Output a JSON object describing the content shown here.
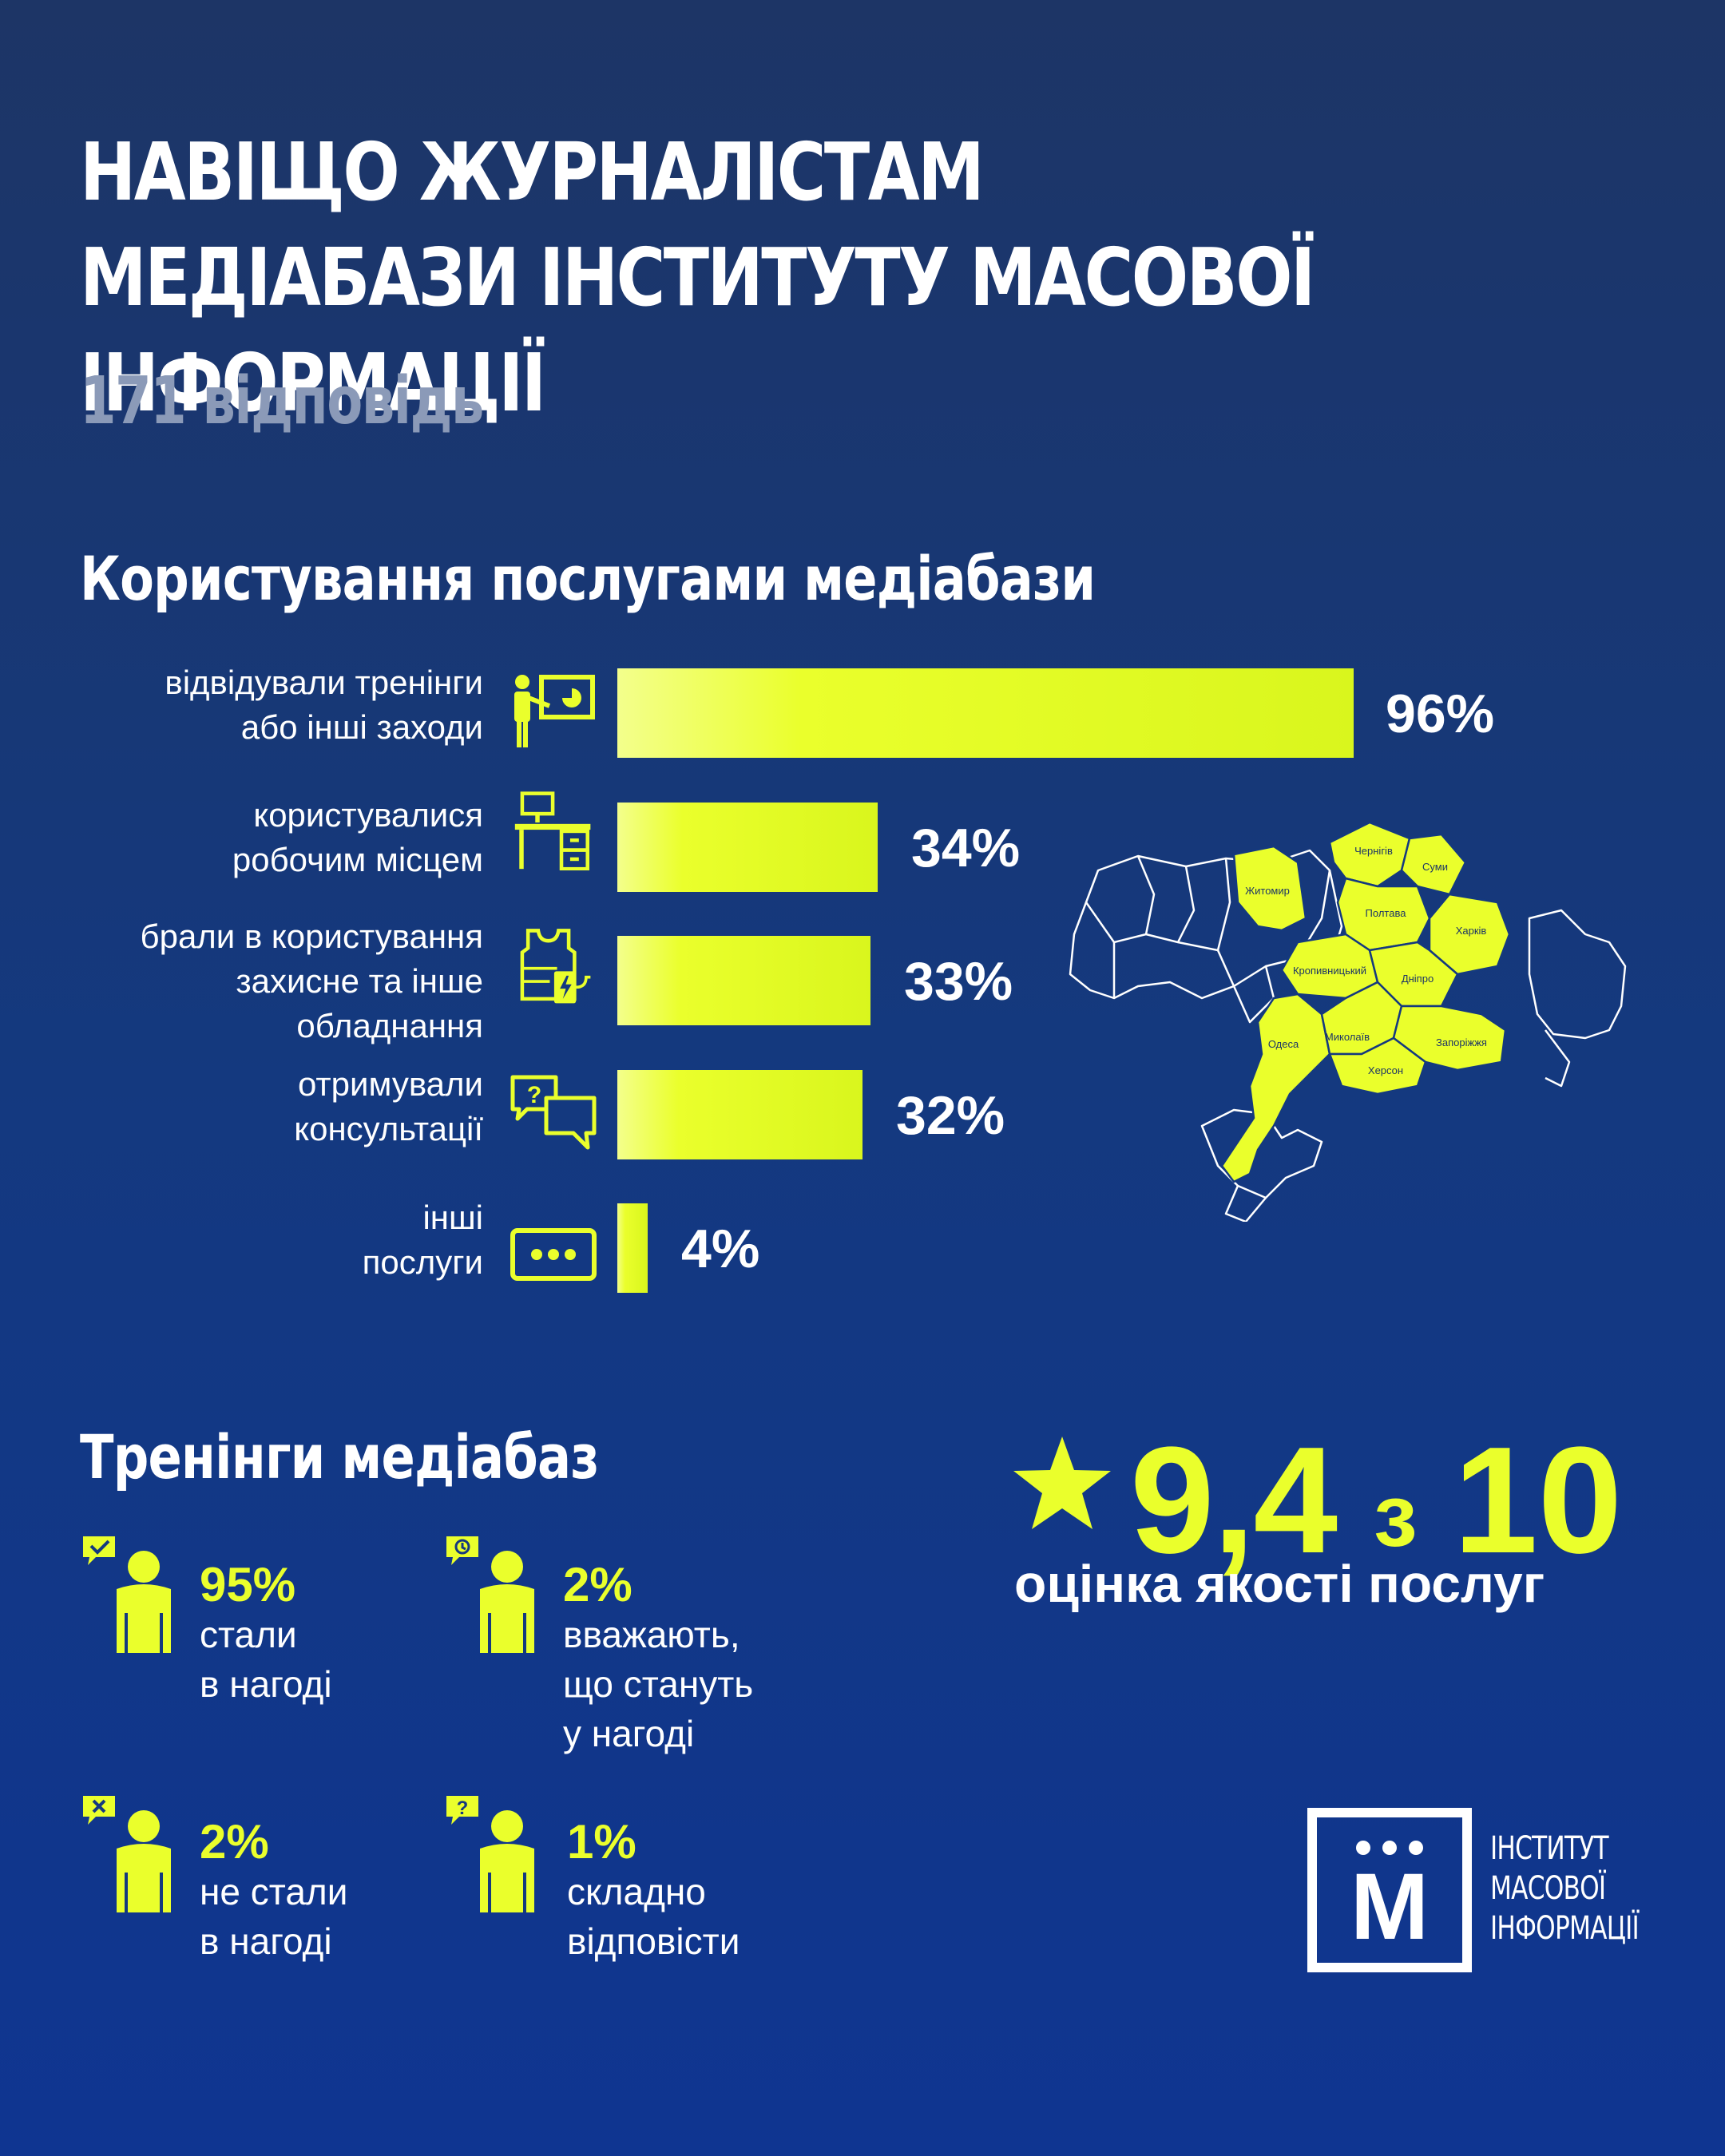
{
  "header": {
    "title": "НАВІЩО ЖУРНАЛІСТАМ МЕДІАБАЗИ ІНСТИТУТУ МАСОВОЇ ІНФОРМАЦІЇ",
    "subtitle": "171 відповідь"
  },
  "colors": {
    "accent": "#eaff2c",
    "background": "#14397f",
    "text": "#ffffff",
    "muted": "#8b9ab8"
  },
  "services": {
    "title": "Користування послугами медіабази"
  },
  "chart_data": {
    "type": "bar",
    "orientation": "horizontal",
    "categories": [
      "відвідували тренінги або інші заходи",
      "користувалися робочим місцем",
      "брали в користування захисне та інше обладнання",
      "отримували консультації",
      "інші послуги"
    ],
    "values": [
      96,
      34,
      33,
      32,
      4
    ],
    "value_labels": [
      "96%",
      "34%",
      "33%",
      "32%",
      "4%"
    ],
    "icons": [
      "trainer-presentation-icon",
      "workplace-desk-icon",
      "body-armor-power-icon",
      "consultation-chat-icon",
      "more-dots-icon"
    ],
    "label_lines": [
      [
        "відвідували тренінги",
        "або інші заходи"
      ],
      [
        "користувалися",
        "робочим місцем"
      ],
      [
        "брали в користування",
        "захисне та інше",
        "обладнання"
      ],
      [
        "отримували",
        "консультації"
      ],
      [
        "інші",
        "послуги"
      ]
    ],
    "title": "Користування послугами медіабази",
    "unit": "%",
    "xlim": [
      0,
      100
    ]
  },
  "map": {
    "regions": [
      {
        "name": "Житомир",
        "highlighted": true
      },
      {
        "name": "Чернігів",
        "highlighted": true
      },
      {
        "name": "Суми",
        "highlighted": true
      },
      {
        "name": "Полтава",
        "highlighted": true
      },
      {
        "name": "Харків",
        "highlighted": true
      },
      {
        "name": "Кропивницький",
        "highlighted": true
      },
      {
        "name": "Дніпро",
        "highlighted": true
      },
      {
        "name": "Одеса",
        "highlighted": true
      },
      {
        "name": "Миколаїв",
        "highlighted": true
      },
      {
        "name": "Запоріжжя",
        "highlighted": true
      },
      {
        "name": "Херсон",
        "highlighted": true
      }
    ]
  },
  "trainings": {
    "title": "Тренінги медіабаз",
    "stats": [
      {
        "value": "95%",
        "lines": [
          "стали",
          "в нагоді"
        ],
        "badge_icon": "check-bubble-icon"
      },
      {
        "value": "2%",
        "lines": [
          "вважають,",
          "що стануть",
          "у нагоді"
        ],
        "badge_icon": "clock-bubble-icon"
      },
      {
        "value": "2%",
        "lines": [
          "не стали",
          "в нагоді"
        ],
        "badge_icon": "cross-bubble-icon"
      },
      {
        "value": "1%",
        "lines": [
          "складно",
          "відповісти"
        ],
        "badge_icon": "question-bubble-icon"
      }
    ]
  },
  "rating": {
    "score": "9,4",
    "separator": "з",
    "max": "10",
    "caption": "оцінка якості послуг",
    "icon": "star-icon"
  },
  "logo": {
    "letter": "М",
    "lines": [
      "ІНСТИТУТ",
      "МАСОВОЇ",
      "ІНФОРМАЦІЇ"
    ]
  }
}
